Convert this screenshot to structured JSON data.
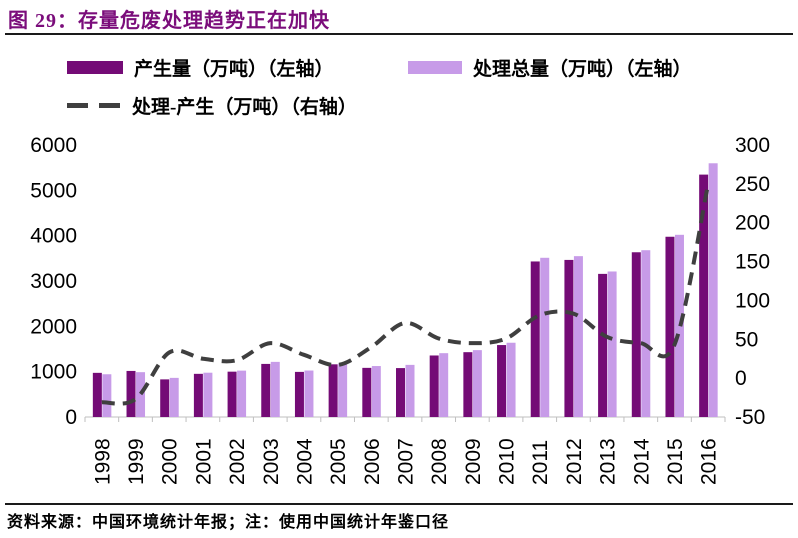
{
  "header": {
    "title": "图 29：存量危废处理趋势正在加快"
  },
  "footer": {
    "source_note": "资料来源：中国环境统计年报；注：使用中国统计年鉴口径"
  },
  "colors": {
    "title": "#7B0D7B",
    "production_bar": "#740B76",
    "treatment_bar": "#C79BE8",
    "diff_line": "#3F3F3F",
    "axis": "#BFBFBF",
    "rule": "#1a1a1a"
  },
  "chart_data": {
    "type": "bar",
    "subtype": "combo-bar-line",
    "title": "图 29：存量危废处理趋势正在加快",
    "categories": [
      "1998",
      "1999",
      "2000",
      "2001",
      "2002",
      "2003",
      "2004",
      "2005",
      "2006",
      "2007",
      "2008",
      "2009",
      "2010",
      "2011",
      "2012",
      "2013",
      "2014",
      "2015",
      "2016"
    ],
    "series": [
      {
        "name": "产生量（万吨）（左轴）",
        "type": "bar",
        "axis": "left",
        "color": "#740B76",
        "values": [
          974,
          1016,
          830,
          952,
          1000,
          1171,
          995,
          1162,
          1084,
          1079,
          1357,
          1430,
          1587,
          3431,
          3465,
          3157,
          3634,
          3976,
          5347
        ]
      },
      {
        "name": "处理总量（万吨）（左轴）",
        "type": "bar",
        "axis": "left",
        "color": "#C79BE8",
        "values": [
          943,
          989,
          863,
          977,
          1023,
          1216,
          1025,
          1179,
          1124,
          1150,
          1408,
          1475,
          1638,
          3512,
          3548,
          3210,
          3679,
          4019,
          5597
        ]
      },
      {
        "name": "处理-产生（万吨）（右轴）",
        "type": "line",
        "axis": "right",
        "color": "#3F3F3F",
        "dashed": true,
        "smooth": true,
        "values": [
          -31,
          -27,
          33,
          25,
          23,
          45,
          30,
          17,
          40,
          71,
          51,
          45,
          51,
          81,
          83,
          53,
          45,
          43,
          250
        ]
      }
    ],
    "left_axis": {
      "min": 0,
      "max": 6000,
      "ticks": [
        0,
        1000,
        2000,
        3000,
        4000,
        5000,
        6000
      ]
    },
    "right_axis": {
      "min": -50,
      "max": 300,
      "ticks": [
        -50,
        0,
        50,
        100,
        150,
        200,
        250,
        300
      ]
    },
    "grid": false,
    "legend_position": "top",
    "xlabel": "",
    "ylabel_left": "万吨",
    "ylabel_right": "万吨"
  }
}
